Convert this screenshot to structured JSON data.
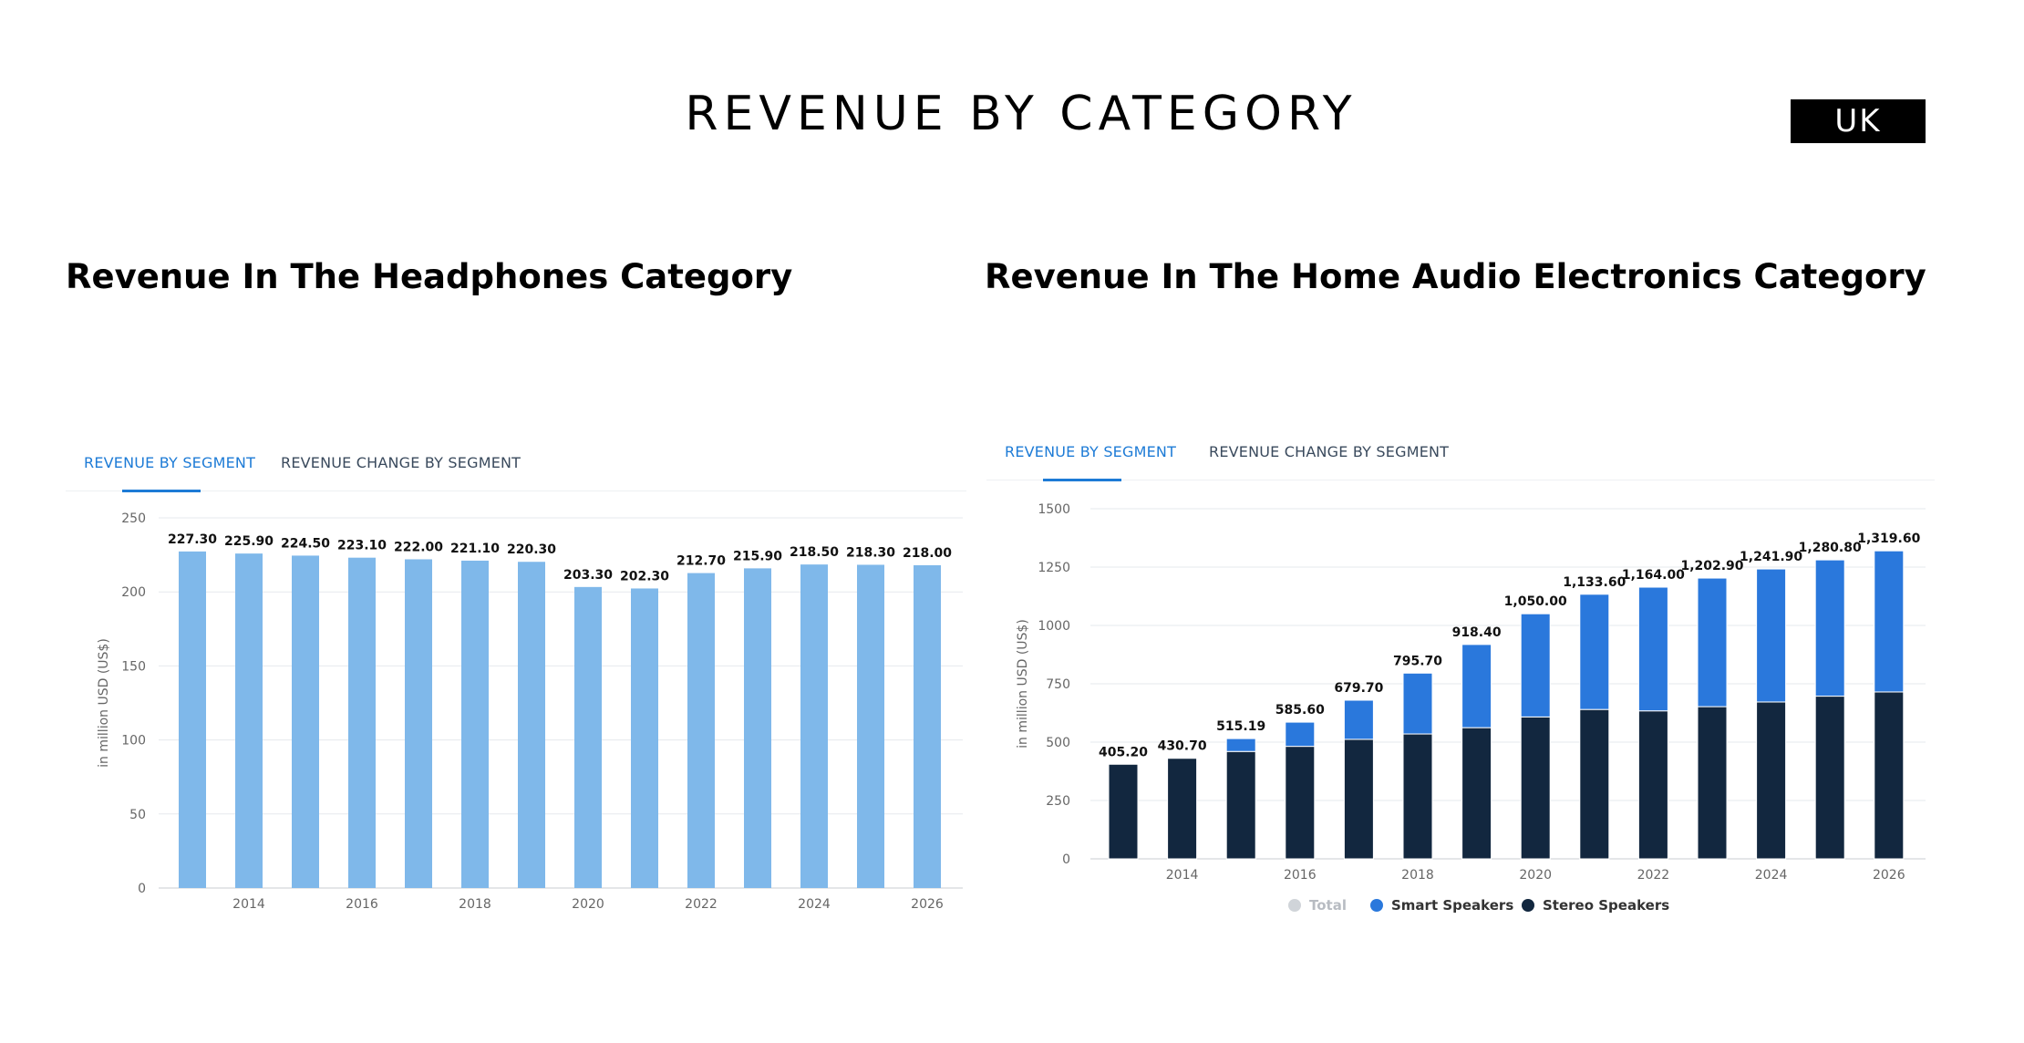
{
  "page": {
    "title": "REVENUE BY CATEGORY",
    "country_badge": "UK"
  },
  "headphones": {
    "heading": "Revenue In The Headphones Category",
    "tabs": [
      {
        "label": "REVENUE BY SEGMENT",
        "active": true
      },
      {
        "label": "REVENUE CHANGE BY SEGMENT",
        "active": false
      }
    ]
  },
  "home_audio": {
    "heading": "Revenue In The Home Audio Electronics Category",
    "tabs": [
      {
        "label": "REVENUE BY SEGMENT",
        "active": true
      },
      {
        "label": "REVENUE CHANGE BY SEGMENT",
        "active": false
      }
    ]
  },
  "colors": {
    "headphones_bar": "#7fb8ea",
    "smart_speakers": "#2a78dc",
    "stereo_speakers": "#12273f",
    "total_legend": "#d0d4d9",
    "grid": "#e6e9ed",
    "axis_text": "#666666",
    "tab_active": "#1d7bd6"
  },
  "chart_data": [
    {
      "type": "bar",
      "title": "Revenue In The Headphones Category",
      "ylabel": "in million USD (US$)",
      "xlabel": "",
      "ylim": [
        0,
        250
      ],
      "yticks": [
        0,
        50,
        100,
        150,
        200,
        250
      ],
      "categories": [
        "2013",
        "2014",
        "2015",
        "2016",
        "2017",
        "2018",
        "2019",
        "2020",
        "2021",
        "2022",
        "2023",
        "2024",
        "2025",
        "2026"
      ],
      "xtick_labels": [
        "2014",
        "2016",
        "2018",
        "2020",
        "2022",
        "2024",
        "2026"
      ],
      "values": [
        227.3,
        225.9,
        224.5,
        223.1,
        222.0,
        221.1,
        220.3,
        203.3,
        202.3,
        212.7,
        215.9,
        218.5,
        218.3,
        218.0
      ],
      "data_labels": [
        "227.30",
        "225.90",
        "224.50",
        "223.10",
        "222.00",
        "221.10",
        "220.30",
        "203.30",
        "202.30",
        "212.70",
        "215.90",
        "218.50",
        "218.30",
        "218.00"
      ],
      "grid": true
    },
    {
      "type": "bar",
      "stacked": true,
      "title": "Revenue In The Home Audio Electronics Category",
      "ylabel": "in million USD (US$)",
      "xlabel": "",
      "ylim": [
        0,
        1500
      ],
      "yticks": [
        0,
        250,
        500,
        750,
        1000,
        1250,
        1500
      ],
      "categories": [
        "2013",
        "2014",
        "2015",
        "2016",
        "2017",
        "2018",
        "2019",
        "2020",
        "2021",
        "2022",
        "2023",
        "2024",
        "2025",
        "2026"
      ],
      "xtick_labels": [
        "2014",
        "2016",
        "2018",
        "2020",
        "2022",
        "2024",
        "2026"
      ],
      "series": [
        {
          "name": "Stereo Speakers",
          "values": [
            405.2,
            430.7,
            460,
            482,
            512,
            535,
            562,
            608,
            640,
            634,
            652,
            672,
            697,
            715
          ]
        },
        {
          "name": "Smart Speakers",
          "values": [
            0,
            0,
            55.19,
            103.6,
            167.7,
            260.7,
            356.4,
            442.0,
            493.6,
            530.0,
            550.9,
            569.9,
            583.8,
            604.6
          ]
        }
      ],
      "totals": [
        "405.20",
        "430.70",
        "515.19",
        "585.60",
        "679.70",
        "795.70",
        "918.40",
        "1,050.00",
        "1,133.60",
        "1,164.00",
        "1,202.90",
        "1,241.90",
        "1,280.80",
        "1,319.60"
      ],
      "legend": [
        "Total",
        "Smart Speakers",
        "Stereo Speakers"
      ],
      "legend_position": "bottom-center",
      "grid": true
    }
  ]
}
